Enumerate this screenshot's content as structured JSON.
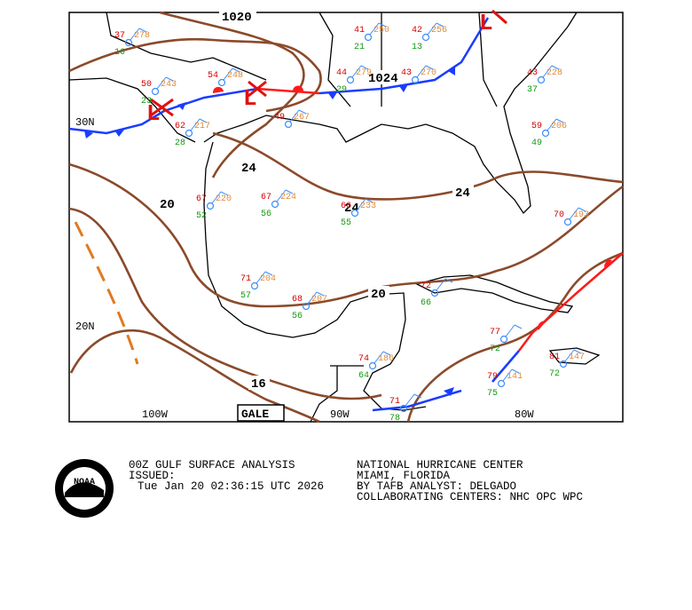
{
  "map": {
    "lat_labels": [
      "30N",
      "20N"
    ],
    "lon_labels": [
      "100W",
      "90W",
      "80W"
    ],
    "isobar_labels": [
      "1020",
      "1024",
      "24",
      "24",
      "24",
      "20",
      "20",
      "16"
    ],
    "lows": [
      "L",
      "L",
      "L"
    ],
    "gale": "GALE",
    "stations": [
      {
        "temp": 37,
        "pressure": 278,
        "dew": 16
      },
      {
        "temp": 50,
        "pressure": 243,
        "dew": 23
      },
      {
        "temp": 62,
        "pressure": 217,
        "dew": 28
      },
      {
        "temp": 54,
        "pressure": 248
      },
      {
        "temp": 41,
        "pressure": 250,
        "dew": 21
      },
      {
        "temp": 42,
        "pressure": 256,
        "dew": 13
      },
      {
        "temp": 44,
        "pressure": 279,
        "dew": 29
      },
      {
        "temp": 43,
        "pressure": 270
      },
      {
        "temp": 43,
        "pressure": 228,
        "dew": 37
      },
      {
        "temp": 49,
        "pressure": 267
      },
      {
        "temp": 59,
        "pressure": 206,
        "dew": 49
      },
      {
        "temp": 67,
        "pressure": 224,
        "dew": 56
      },
      {
        "temp": 66,
        "pressure": 233,
        "dew": 55
      },
      {
        "temp": 67,
        "pressure": 220,
        "dew": 52
      },
      {
        "temp": 71,
        "pressure": 204,
        "dew": 57
      },
      {
        "temp": 68,
        "pressure": 207,
        "dew": 56
      },
      {
        "temp": 70,
        "pressure": 193
      },
      {
        "temp": 72,
        "dew": 66
      },
      {
        "temp": 77,
        "dew": 72
      },
      {
        "temp": 79,
        "pressure": 141,
        "dew": 75
      },
      {
        "temp": 81,
        "pressure": 147,
        "dew": 72
      },
      {
        "temp": 74,
        "pressure": 186,
        "dew": 64
      },
      {
        "temp": 71,
        "dew": 78
      }
    ]
  },
  "footer": {
    "logo": "NOAA",
    "title": "00Z GULF SURFACE ANALYSIS",
    "issued": "ISSUED:",
    "time": "Tue Jan 20 02:36:15 UTC 2026",
    "center": "NATIONAL HURRICANE CENTER",
    "location": "MIAMI, FLORIDA",
    "analyst": "BY TAFB ANALYST: DELGADO",
    "collab": "COLLABORATING CENTERS: NHC OPC WPC"
  }
}
